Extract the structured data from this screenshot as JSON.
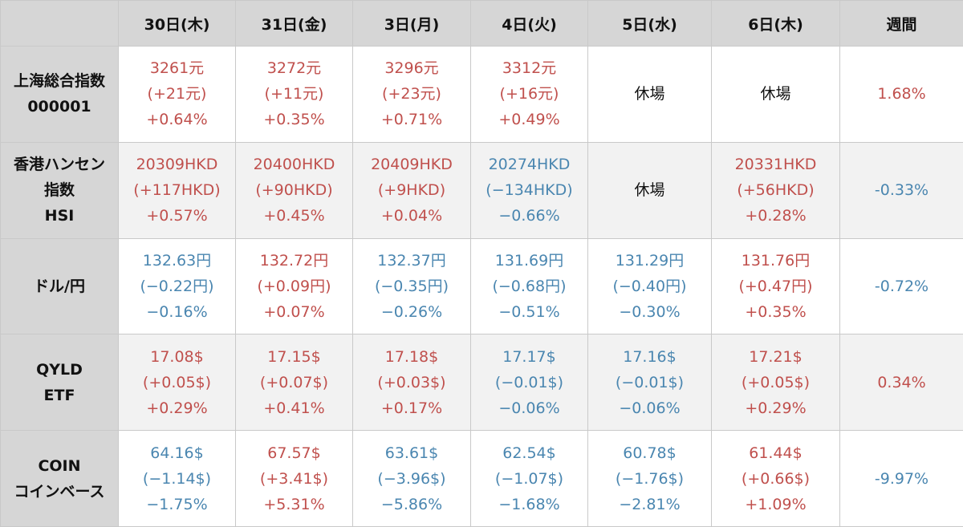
{
  "header": {
    "corner": "",
    "days": [
      "30日(木)",
      "31日(金)",
      "3日(月)",
      "4日(火)",
      "5日(水)",
      "6日(木)"
    ],
    "weekly": "週間"
  },
  "colors": {
    "up": "#c0504d",
    "down": "#4a86b0",
    "header_bg": "#d6d6d6",
    "alt_row_bg": "#f2f2f2"
  },
  "rows": [
    {
      "name_lines": [
        "上海総合指数",
        "000001"
      ],
      "cells": [
        {
          "dir": "up",
          "lines": [
            "3261元",
            "(+21元)",
            "+0.64%"
          ]
        },
        {
          "dir": "up",
          "lines": [
            "3272元",
            "(+11元)",
            "+0.35%"
          ]
        },
        {
          "dir": "up",
          "lines": [
            "3296元",
            "(+23元)",
            "+0.71%"
          ]
        },
        {
          "dir": "up",
          "lines": [
            "3312元",
            "(+16元)",
            "+0.49%"
          ]
        },
        {
          "dir": "closed",
          "lines": [
            "休場"
          ]
        },
        {
          "dir": "closed",
          "lines": [
            "休場"
          ]
        }
      ],
      "weekly": {
        "dir": "up",
        "value": "1.68%"
      }
    },
    {
      "name_lines": [
        "香港ハンセン",
        "指数",
        "HSI"
      ],
      "cells": [
        {
          "dir": "up",
          "lines": [
            "20309HKD",
            "(+117HKD)",
            "+0.57%"
          ]
        },
        {
          "dir": "up",
          "lines": [
            "20400HKD",
            "(+90HKD)",
            "+0.45%"
          ]
        },
        {
          "dir": "up",
          "lines": [
            "20409HKD",
            "(+9HKD)",
            "+0.04%"
          ]
        },
        {
          "dir": "down",
          "lines": [
            "20274HKD",
            "(−134HKD)",
            "−0.66%"
          ]
        },
        {
          "dir": "closed",
          "lines": [
            "休場"
          ]
        },
        {
          "dir": "up",
          "lines": [
            "20331HKD",
            "(+56HKD)",
            "+0.28%"
          ]
        }
      ],
      "weekly": {
        "dir": "down",
        "value": "-0.33%"
      }
    },
    {
      "name_lines": [
        "ドル/円"
      ],
      "cells": [
        {
          "dir": "down",
          "lines": [
            "132.63円",
            "(−0.22円)",
            "−0.16%"
          ]
        },
        {
          "dir": "up",
          "lines": [
            "132.72円",
            "(+0.09円)",
            "+0.07%"
          ]
        },
        {
          "dir": "down",
          "lines": [
            "132.37円",
            "(−0.35円)",
            "−0.26%"
          ]
        },
        {
          "dir": "down",
          "lines": [
            "131.69円",
            "(−0.68円)",
            "−0.51%"
          ]
        },
        {
          "dir": "down",
          "lines": [
            "131.29円",
            "(−0.40円)",
            "−0.30%"
          ]
        },
        {
          "dir": "up",
          "lines": [
            "131.76円",
            "(+0.47円)",
            "+0.35%"
          ]
        }
      ],
      "weekly": {
        "dir": "down",
        "value": "-0.72%"
      }
    },
    {
      "name_lines": [
        "QYLD",
        "ETF"
      ],
      "cells": [
        {
          "dir": "up",
          "lines": [
            "17.08$",
            "(+0.05$)",
            "+0.29%"
          ]
        },
        {
          "dir": "up",
          "lines": [
            "17.15$",
            "(+0.07$)",
            "+0.41%"
          ]
        },
        {
          "dir": "up",
          "lines": [
            "17.18$",
            "(+0.03$)",
            "+0.17%"
          ]
        },
        {
          "dir": "down",
          "lines": [
            "17.17$",
            "(−0.01$)",
            "−0.06%"
          ]
        },
        {
          "dir": "down",
          "lines": [
            "17.16$",
            "(−0.01$)",
            "−0.06%"
          ]
        },
        {
          "dir": "up",
          "lines": [
            "17.21$",
            "(+0.05$)",
            "+0.29%"
          ]
        }
      ],
      "weekly": {
        "dir": "up",
        "value": "0.34%"
      }
    },
    {
      "name_lines": [
        "COIN",
        "コインベース"
      ],
      "cells": [
        {
          "dir": "down",
          "lines": [
            "64.16$",
            "(−1.14$)",
            "−1.75%"
          ]
        },
        {
          "dir": "up",
          "lines": [
            "67.57$",
            "(+3.41$)",
            "+5.31%"
          ]
        },
        {
          "dir": "down",
          "lines": [
            "63.61$",
            "(−3.96$)",
            "−5.86%"
          ]
        },
        {
          "dir": "down",
          "lines": [
            "62.54$",
            "(−1.07$)",
            "−1.68%"
          ]
        },
        {
          "dir": "down",
          "lines": [
            "60.78$",
            "(−1.76$)",
            "−2.81%"
          ]
        },
        {
          "dir": "up",
          "lines": [
            "61.44$",
            "(+0.66$)",
            "+1.09%"
          ]
        }
      ],
      "weekly": {
        "dir": "down",
        "value": "-9.97%"
      }
    }
  ]
}
